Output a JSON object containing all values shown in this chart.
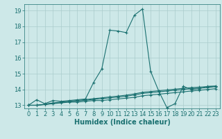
{
  "title": "",
  "xlabel": "Humidex (Indice chaleur)",
  "ylabel": "",
  "background_color": "#cde8e8",
  "grid_color": "#aacccc",
  "line_color": "#1a7070",
  "xlim": [
    -0.5,
    23.5
  ],
  "ylim": [
    12.8,
    19.4
  ],
  "yticks": [
    13,
    14,
    15,
    16,
    17,
    18,
    19
  ],
  "xticks": [
    0,
    1,
    2,
    3,
    4,
    5,
    6,
    7,
    8,
    9,
    10,
    11,
    12,
    13,
    14,
    15,
    16,
    17,
    18,
    19,
    20,
    21,
    22,
    23
  ],
  "lines": [
    {
      "x": [
        0,
        1,
        2,
        3,
        4,
        5,
        6,
        7,
        8,
        9,
        10,
        11,
        12,
        13,
        14,
        15,
        16,
        17,
        18,
        19,
        20,
        21,
        22,
        23
      ],
      "y": [
        13.0,
        13.35,
        13.1,
        13.3,
        13.25,
        13.3,
        13.35,
        13.4,
        14.45,
        15.3,
        17.75,
        17.7,
        17.6,
        18.7,
        19.1,
        15.15,
        13.9,
        12.85,
        13.1,
        14.2,
        14.0,
        14.05,
        14.2,
        14.2
      ]
    },
    {
      "x": [
        0,
        1,
        2,
        3,
        4,
        5,
        6,
        7,
        8,
        9,
        10,
        11,
        12,
        13,
        14,
        15,
        16,
        17,
        18,
        19,
        20,
        21,
        22,
        23
      ],
      "y": [
        13.0,
        13.0,
        13.05,
        13.1,
        13.15,
        13.2,
        13.2,
        13.25,
        13.3,
        13.3,
        13.35,
        13.4,
        13.45,
        13.5,
        13.6,
        13.65,
        13.7,
        13.75,
        13.8,
        13.85,
        13.9,
        13.95,
        14.0,
        14.05
      ]
    },
    {
      "x": [
        0,
        1,
        2,
        3,
        4,
        5,
        6,
        7,
        8,
        9,
        10,
        11,
        12,
        13,
        14,
        15,
        16,
        17,
        18,
        19,
        20,
        21,
        22,
        23
      ],
      "y": [
        13.0,
        13.0,
        13.05,
        13.12,
        13.18,
        13.22,
        13.27,
        13.32,
        13.37,
        13.42,
        13.47,
        13.52,
        13.57,
        13.65,
        13.75,
        13.8,
        13.85,
        13.9,
        13.95,
        14.0,
        14.05,
        14.08,
        14.12,
        14.18
      ]
    },
    {
      "x": [
        0,
        1,
        2,
        3,
        4,
        5,
        6,
        7,
        8,
        9,
        10,
        11,
        12,
        13,
        14,
        15,
        16,
        17,
        18,
        19,
        20,
        21,
        22,
        23
      ],
      "y": [
        13.0,
        13.0,
        13.07,
        13.15,
        13.2,
        13.25,
        13.3,
        13.36,
        13.42,
        13.47,
        13.53,
        13.58,
        13.64,
        13.72,
        13.82,
        13.87,
        13.92,
        13.97,
        14.02,
        14.07,
        14.12,
        14.15,
        14.18,
        14.22
      ]
    }
  ],
  "marker": "+",
  "markersize": 3,
  "linewidth": 0.8,
  "tick_fontsize": 6,
  "xlabel_fontsize": 7
}
